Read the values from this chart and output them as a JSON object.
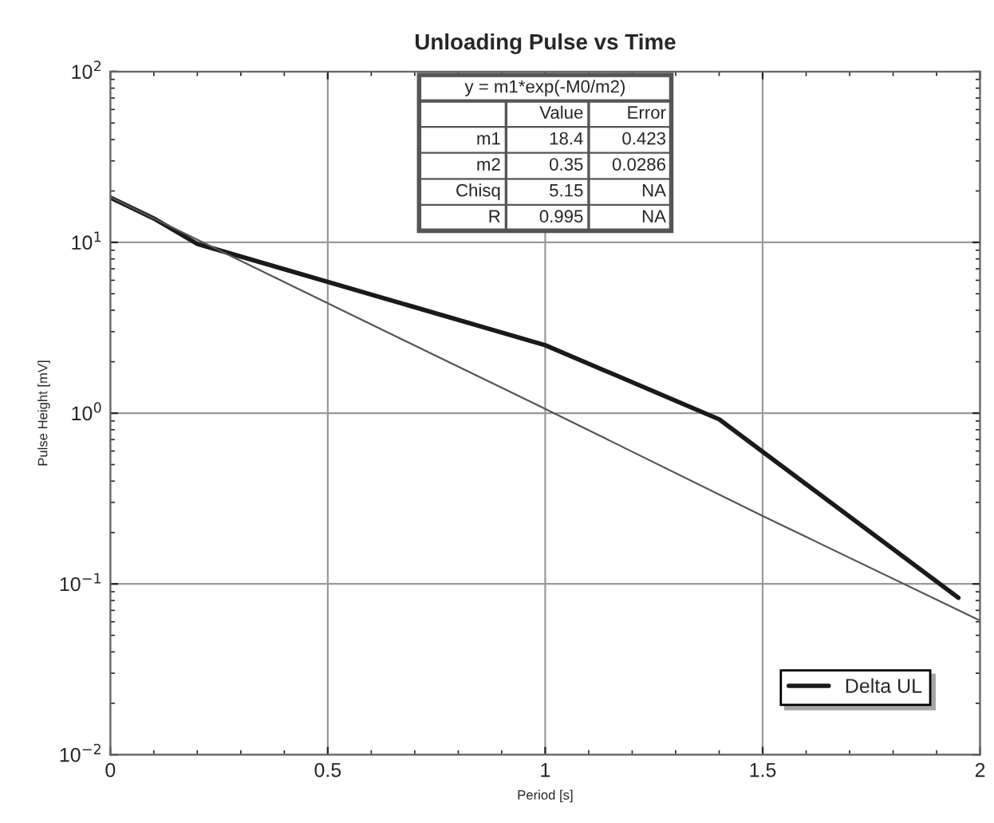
{
  "chart_data": {
    "type": "line",
    "title": "Unloading Pulse vs Time",
    "xlabel": "Period [s]",
    "ylabel": "Pulse Height [mV]",
    "series": [
      {
        "name": "Delta UL",
        "color": "#1a1a1a",
        "x": [
          0,
          0.1,
          0.2,
          1.0,
          1.4,
          1.95
        ],
        "values": [
          18.3,
          13.8,
          9.8,
          2.5,
          0.92,
          0.083
        ]
      },
      {
        "color": "#555555",
        "x": [
          0,
          0.5,
          1.0,
          1.5,
          2.0
        ],
        "values": [
          18.4,
          4.4,
          1.06,
          0.25,
          0.061
        ]
      }
    ],
    "xlim": [
      0,
      2
    ],
    "xticks": [
      0,
      0.5,
      1,
      1.5,
      2
    ],
    "ylim": [
      0.01,
      100
    ],
    "yticks": [
      {
        "value": 0.01,
        "label": "10$^{−2}$"
      },
      {
        "value": 0.1,
        "label": "10$^{−1}$"
      },
      {
        "value": 1,
        "label": "10$^{0}$"
      },
      {
        "value": 10,
        "label": "10$^{1}$"
      },
      {
        "value": 100,
        "label": "10$^{2}$"
      }
    ],
    "log": "y",
    "grid": true,
    "legend": "lower right",
    "annotations": [
      "y = m1*exp(-M0/m2)",
      "Value",
      "Error",
      "m1",
      "18.4",
      "0.423",
      "m2",
      "0.35",
      "0.0286",
      "Chisq",
      "5.15",
      "NA",
      "R",
      "0.995",
      "NA"
    ]
  }
}
